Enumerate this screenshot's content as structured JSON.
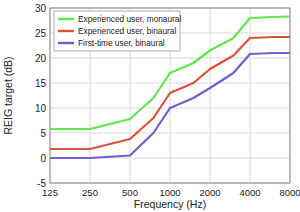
{
  "chart_data": {
    "type": "line",
    "x_label": "Frequency (Hz)",
    "y_label": "REIG target (dB)",
    "x": [
      125,
      250,
      500,
      750,
      1000,
      1500,
      2000,
      3000,
      4000,
      6000,
      8000
    ],
    "series": [
      {
        "name": "Experienced user, monaural",
        "color": "#5fe84b",
        "values": [
          5.8,
          5.8,
          7.8,
          12,
          17,
          19,
          21.5,
          24,
          28,
          28.2,
          28.3
        ]
      },
      {
        "name": "Experienced user, binaural",
        "color": "#d9533b",
        "values": [
          1.8,
          1.8,
          3.8,
          8,
          13,
          15,
          17.8,
          20.5,
          24,
          24.2,
          24.2
        ]
      },
      {
        "name": "First-time user, binaural",
        "color": "#6e5fd0",
        "values": [
          0,
          0,
          0.5,
          5,
          10,
          12,
          14,
          17,
          20.8,
          21,
          21
        ]
      }
    ],
    "log": "x",
    "xlim": [
      125,
      8000
    ],
    "xticks": [
      125,
      250,
      500,
      1000,
      2000,
      4000,
      8000
    ],
    "ylim": [
      -5,
      30
    ],
    "yticks": [
      -5,
      0,
      5,
      10,
      15,
      20,
      25,
      30
    ],
    "grid": true,
    "legend": "upper left"
  }
}
